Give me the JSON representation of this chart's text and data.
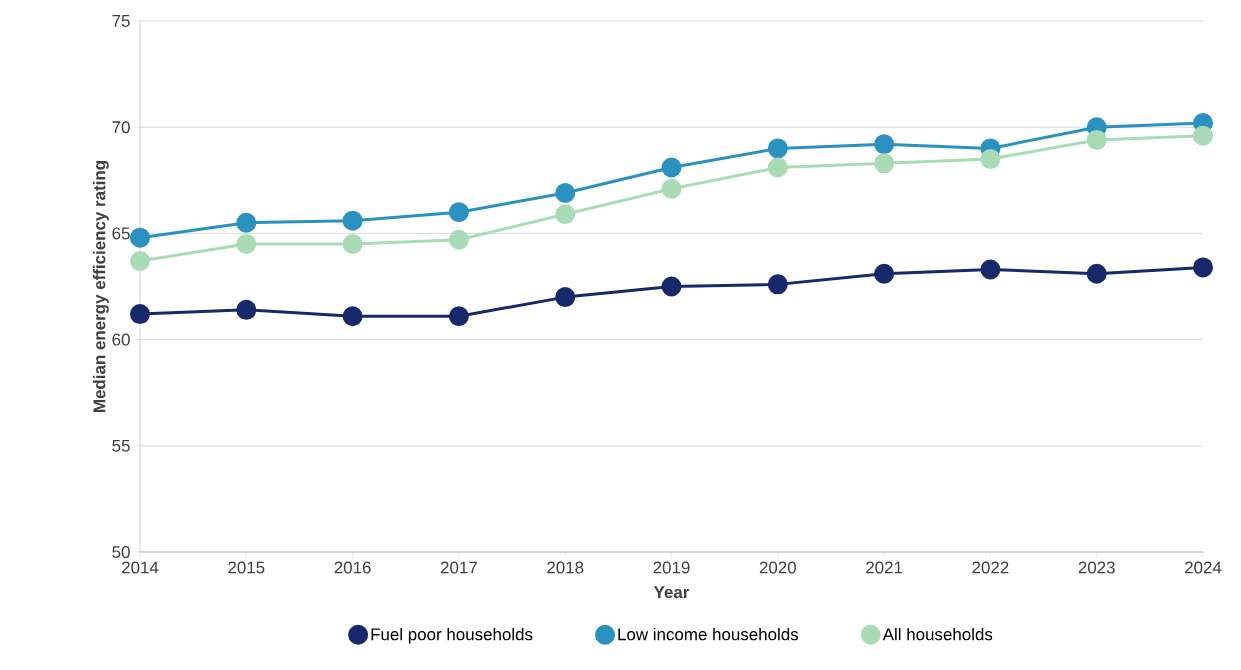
{
  "chart_data": {
    "type": "line",
    "xlabel": "Year",
    "ylabel": "Median energy efficiency rating",
    "x": [
      2014,
      2015,
      2016,
      2017,
      2018,
      2019,
      2020,
      2021,
      2022,
      2023,
      2024
    ],
    "series": [
      {
        "name": "Fuel poor households",
        "color": "#17296b",
        "values": [
          61.2,
          61.4,
          61.1,
          61.1,
          62.0,
          62.5,
          62.6,
          63.1,
          63.3,
          63.1,
          63.4
        ]
      },
      {
        "name": "Low income households",
        "color": "#2a92c0",
        "values": [
          64.8,
          65.5,
          65.6,
          66.0,
          66.9,
          68.1,
          69.0,
          69.2,
          69.0,
          70.0,
          70.2
        ]
      },
      {
        "name": "All households",
        "color": "#a9dcb6",
        "values": [
          63.7,
          64.5,
          64.5,
          64.7,
          65.9,
          67.1,
          68.1,
          68.3,
          68.5,
          69.4,
          69.6
        ]
      }
    ],
    "xlim": [
      2014,
      2024
    ],
    "xticks": [
      2014,
      2015,
      2016,
      2017,
      2018,
      2019,
      2020,
      2021,
      2022,
      2023,
      2024
    ],
    "ylim": [
      50,
      75
    ],
    "yticks": [
      50,
      55,
      60,
      65,
      70,
      75
    ],
    "grid": "y",
    "legend": "bottom",
    "marker": "circle",
    "line_style": "solid"
  }
}
